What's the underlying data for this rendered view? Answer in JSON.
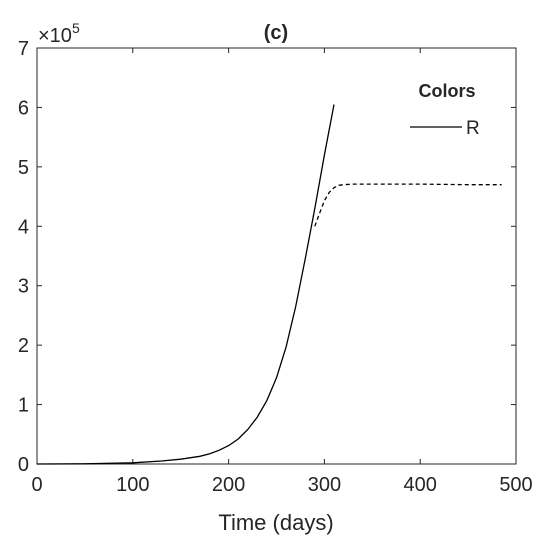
{
  "chart_data": {
    "type": "line",
    "title": "(c)",
    "xlabel": "Time (days)",
    "ylabel": "",
    "y_exponent_label": "×10",
    "y_exponent_power": "5",
    "xlim": [
      0,
      500
    ],
    "ylim": [
      0,
      7
    ],
    "xticks": [
      0,
      100,
      200,
      300,
      400,
      500
    ],
    "yticks": [
      0,
      1,
      2,
      3,
      4,
      5,
      6,
      7
    ],
    "xtick_labels": [
      "0",
      "100",
      "200",
      "300",
      "400",
      "500"
    ],
    "ytick_labels": [
      "0",
      "1",
      "2",
      "3",
      "4",
      "5",
      "6",
      "7"
    ],
    "grid": false,
    "legend": {
      "title": "Colors",
      "placement": "top-right",
      "entries": [
        {
          "label": "R",
          "style": "solid"
        }
      ]
    },
    "series": [
      {
        "name": "R",
        "style": "solid",
        "color": "#000000",
        "x": [
          0,
          50,
          100,
          130,
          150,
          170,
          180,
          190,
          200,
          210,
          220,
          230,
          240,
          250,
          260,
          270,
          280,
          290,
          300,
          310
        ],
        "y": [
          0,
          0.003,
          0.02,
          0.05,
          0.08,
          0.13,
          0.17,
          0.23,
          0.31,
          0.42,
          0.58,
          0.79,
          1.07,
          1.45,
          1.97,
          2.65,
          3.45,
          4.3,
          5.2,
          6.05
        ]
      },
      {
        "style": "dashed",
        "color": "#000000",
        "x": [
          290,
          295,
          300,
          305,
          310,
          315,
          320,
          330,
          340,
          360,
          400,
          450,
          485
        ],
        "y": [
          4.0,
          4.22,
          4.43,
          4.57,
          4.65,
          4.69,
          4.7,
          4.71,
          4.71,
          4.71,
          4.71,
          4.7,
          4.7
        ]
      }
    ]
  }
}
